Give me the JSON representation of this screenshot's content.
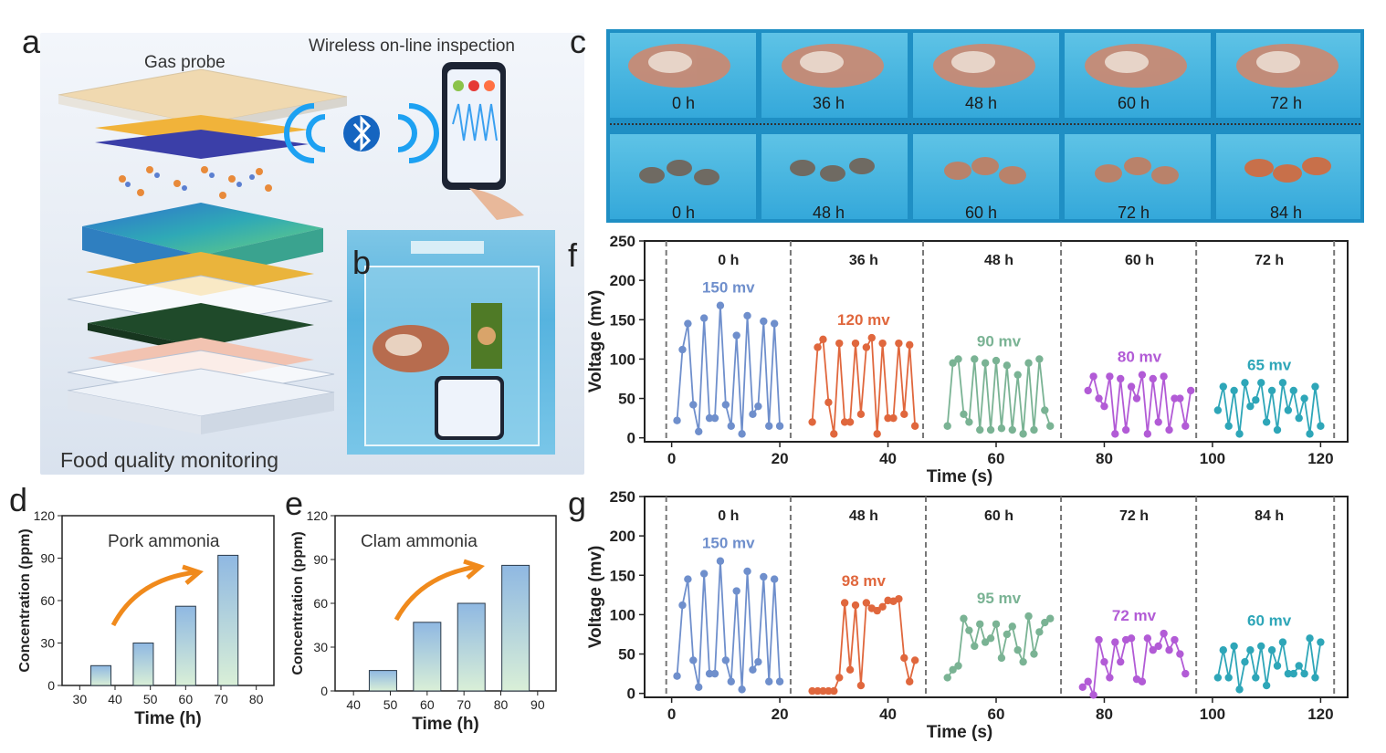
{
  "panels": {
    "a": {
      "letter": "a",
      "gas_probe": "Gas probe",
      "wireless": "Wireless on-line inspection",
      "food_quality": "Food quality monitoring"
    },
    "b": {
      "letter": "b"
    },
    "c": {
      "letter": "c",
      "pork_labels": [
        "0 h",
        "36 h",
        "48 h",
        "60 h",
        "72 h"
      ],
      "clam_labels": [
        "0 h",
        "48 h",
        "60 h",
        "72 h",
        "84 h"
      ]
    },
    "d": {
      "letter": "d"
    },
    "e": {
      "letter": "e"
    },
    "f": {
      "letter": "f"
    },
    "g": {
      "letter": "g"
    }
  },
  "colors": {
    "blue": "#6f8fcc",
    "orange": "#e0673d",
    "green": "#7ab394",
    "purple": "#b25bd6",
    "teal": "#2ea6b8",
    "bar_top": "#8fb8e2",
    "bar_bottom": "#d9efd7",
    "arrow": "#f08a1c"
  },
  "chart_data": [
    {
      "id": "d",
      "type": "bar",
      "title": "Pork ammonia",
      "xlabel": "Time (h)",
      "ylabel": "Concentration (ppm)",
      "x": [
        36,
        48,
        60,
        72
      ],
      "values": [
        14,
        30,
        56,
        92
      ],
      "xlim": [
        25,
        85
      ],
      "ylim": [
        0,
        120
      ],
      "xticks": [
        30,
        40,
        50,
        60,
        70,
        80
      ],
      "yticks": [
        0,
        30,
        60,
        90,
        120
      ]
    },
    {
      "id": "e",
      "type": "bar",
      "title": "Clam ammonia",
      "xlabel": "Time (h)",
      "ylabel": "Concentration (ppm)",
      "x": [
        48,
        60,
        72,
        84
      ],
      "values": [
        14,
        47,
        60,
        86
      ],
      "xlim": [
        35,
        95
      ],
      "ylim": [
        0,
        120
      ],
      "xticks": [
        40,
        50,
        60,
        70,
        80,
        90
      ],
      "yticks": [
        0,
        30,
        60,
        90,
        120
      ]
    },
    {
      "id": "f",
      "type": "line",
      "xlabel": "Time (s)",
      "ylabel": "Voltage (mv)",
      "xlim": [
        -5,
        125
      ],
      "ylim": [
        -5,
        250
      ],
      "xticks": [
        0,
        20,
        40,
        60,
        80,
        100,
        120
      ],
      "yticks": [
        0,
        50,
        100,
        150,
        200,
        250
      ],
      "dividers": [
        22,
        46.5,
        72,
        97,
        122.5
      ],
      "series": [
        {
          "name": "0 h",
          "peak_label": "150 mv",
          "color_key": "blue",
          "x": [
            1,
            2,
            3,
            4,
            5,
            6,
            7,
            8,
            9,
            10,
            11,
            12,
            13,
            14,
            15,
            16,
            17,
            18,
            19,
            20
          ],
          "y": [
            22,
            112,
            145,
            42,
            8,
            152,
            25,
            25,
            168,
            42,
            15,
            130,
            5,
            155,
            30,
            40,
            148,
            15,
            145,
            15
          ]
        },
        {
          "name": "36 h",
          "peak_label": "120 mv",
          "color_key": "orange",
          "x": [
            26,
            27,
            28,
            29,
            30,
            31,
            32,
            33,
            34,
            35,
            36,
            37,
            38,
            39,
            40,
            41,
            42,
            43,
            44,
            45
          ],
          "y": [
            20,
            115,
            125,
            45,
            5,
            120,
            20,
            20,
            120,
            30,
            115,
            127,
            5,
            120,
            25,
            25,
            120,
            30,
            118,
            15
          ]
        },
        {
          "name": "48 h",
          "peak_label": "90 mv",
          "color_key": "green",
          "x": [
            51,
            52,
            53,
            54,
            55,
            56,
            57,
            58,
            59,
            60,
            61,
            62,
            63,
            64,
            65,
            66,
            67,
            68,
            69,
            70
          ],
          "y": [
            15,
            95,
            100,
            30,
            20,
            100,
            10,
            95,
            10,
            98,
            12,
            92,
            10,
            80,
            5,
            95,
            10,
            100,
            35,
            15
          ]
        },
        {
          "name": "60 h",
          "peak_label": "80 mv",
          "color_key": "purple",
          "x": [
            77,
            78,
            79,
            80,
            81,
            82,
            83,
            84,
            85,
            86,
            87,
            88,
            89,
            90,
            91,
            92,
            93,
            94,
            95,
            96
          ],
          "y": [
            60,
            78,
            50,
            40,
            78,
            5,
            75,
            10,
            65,
            50,
            80,
            5,
            75,
            20,
            78,
            10,
            50,
            50,
            15,
            60
          ]
        },
        {
          "name": "72 h",
          "peak_label": "65 mv",
          "color_key": "teal",
          "x": [
            101,
            102,
            103,
            104,
            105,
            106,
            107,
            108,
            109,
            110,
            111,
            112,
            113,
            114,
            115,
            116,
            117,
            118,
            119,
            120
          ],
          "y": [
            35,
            65,
            15,
            60,
            5,
            70,
            40,
            48,
            70,
            20,
            60,
            10,
            70,
            35,
            60,
            25,
            50,
            5,
            65,
            15
          ]
        }
      ]
    },
    {
      "id": "g",
      "type": "line",
      "xlabel": "Time (s)",
      "ylabel": "Voltage (mv)",
      "xlim": [
        -5,
        125
      ],
      "ylim": [
        -5,
        250
      ],
      "xticks": [
        0,
        20,
        40,
        60,
        80,
        100,
        120
      ],
      "yticks": [
        0,
        50,
        100,
        150,
        200,
        250
      ],
      "dividers": [
        22,
        47,
        72,
        97,
        122.5
      ],
      "series": [
        {
          "name": "0 h",
          "peak_label": "150 mv",
          "color_key": "blue",
          "x": [
            1,
            2,
            3,
            4,
            5,
            6,
            7,
            8,
            9,
            10,
            11,
            12,
            13,
            14,
            15,
            16,
            17,
            18,
            19,
            20
          ],
          "y": [
            22,
            112,
            145,
            42,
            8,
            152,
            25,
            25,
            168,
            42,
            15,
            130,
            5,
            155,
            30,
            40,
            148,
            15,
            145,
            15
          ]
        },
        {
          "name": "48 h",
          "peak_label": "98 mv",
          "color_key": "orange",
          "x": [
            26,
            27,
            28,
            29,
            30,
            31,
            32,
            33,
            34,
            35,
            36,
            37,
            38,
            39,
            40,
            41,
            42,
            43,
            44,
            45
          ],
          "y": [
            3,
            3,
            3,
            3,
            3,
            20,
            115,
            30,
            112,
            10,
            115,
            108,
            105,
            110,
            118,
            117,
            120,
            45,
            15,
            42
          ]
        },
        {
          "name": "60 h",
          "peak_label": "95 mv",
          "color_key": "green",
          "x": [
            51,
            52,
            53,
            54,
            55,
            56,
            57,
            58,
            59,
            60,
            61,
            62,
            63,
            64,
            65,
            66,
            67,
            68,
            69,
            70
          ],
          "y": [
            20,
            30,
            35,
            95,
            80,
            60,
            88,
            65,
            70,
            88,
            45,
            75,
            85,
            55,
            40,
            98,
            50,
            78,
            90,
            95
          ]
        },
        {
          "name": "72 h",
          "peak_label": "72 mv",
          "color_key": "purple",
          "x": [
            76,
            77,
            78,
            79,
            80,
            81,
            82,
            83,
            84,
            85,
            86,
            87,
            88,
            89,
            90,
            91,
            92,
            93,
            94,
            95
          ],
          "y": [
            8,
            15,
            -2,
            68,
            40,
            20,
            65,
            40,
            68,
            70,
            18,
            15,
            70,
            55,
            60,
            76,
            55,
            68,
            50,
            25
          ]
        },
        {
          "name": "84 h",
          "peak_label": "60 mv",
          "color_key": "teal",
          "x": [
            101,
            102,
            103,
            104,
            105,
            106,
            107,
            108,
            109,
            110,
            111,
            112,
            113,
            114,
            115,
            116,
            117,
            118,
            119,
            120
          ],
          "y": [
            20,
            55,
            20,
            60,
            5,
            40,
            55,
            20,
            60,
            10,
            55,
            35,
            65,
            25,
            25,
            35,
            25,
            70,
            20,
            65
          ]
        }
      ]
    }
  ]
}
